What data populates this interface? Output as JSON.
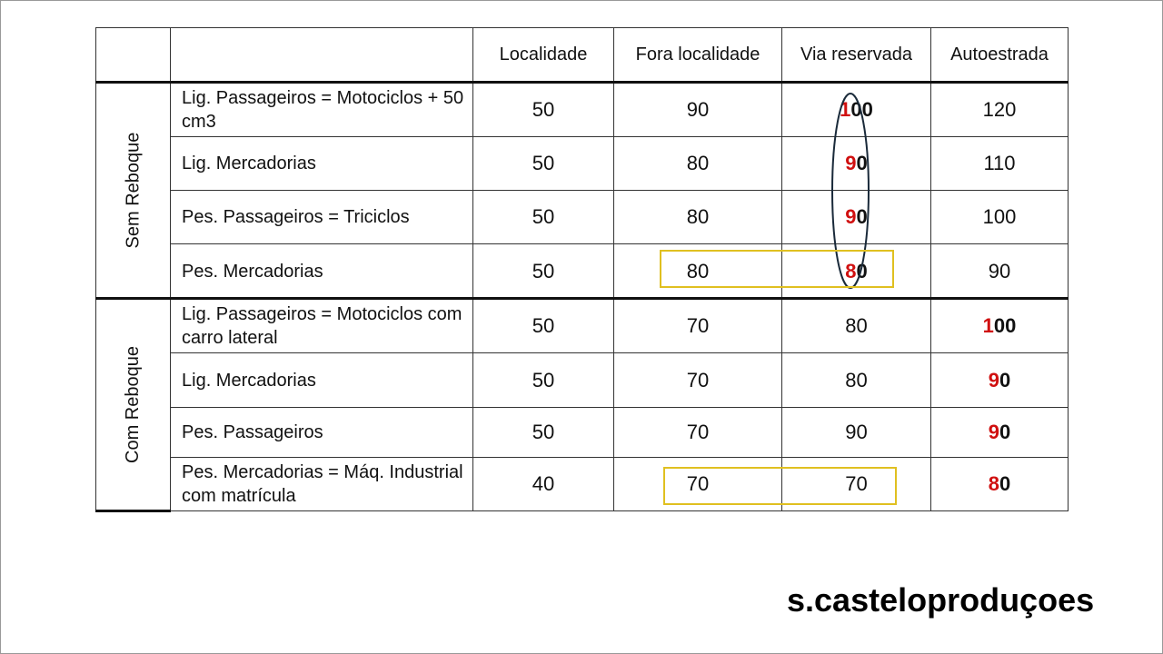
{
  "table": {
    "header": [
      "Localidade",
      "Fora localidade",
      "Via reservada",
      "Autoestrada"
    ],
    "groups": [
      {
        "label": "Sem Reboque",
        "rows": [
          [
            "Lig. Passageiros = Motociclos + 50 cm3",
            50,
            90,
            100,
            120
          ],
          [
            "Lig. Mercadorias",
            50,
            80,
            90,
            110
          ],
          [
            "Pes. Passageiros = Triciclos",
            50,
            80,
            90,
            100
          ],
          [
            "Pes. Mercadorias",
            50,
            80,
            80,
            90
          ]
        ]
      },
      {
        "label": "Com Reboque",
        "rows": [
          [
            "Lig. Passageiros = Motociclos com carro lateral",
            50,
            70,
            80,
            100
          ],
          [
            "Lig. Mercadorias",
            50,
            70,
            80,
            90
          ],
          [
            "Pes. Passageiros",
            50,
            70,
            90,
            90
          ],
          [
            "Pes. Mercadorias = Máq. Industrial com matrícula",
            40,
            70,
            70,
            80
          ]
        ]
      }
    ]
  },
  "footer": "s.casteloproduçoes"
}
